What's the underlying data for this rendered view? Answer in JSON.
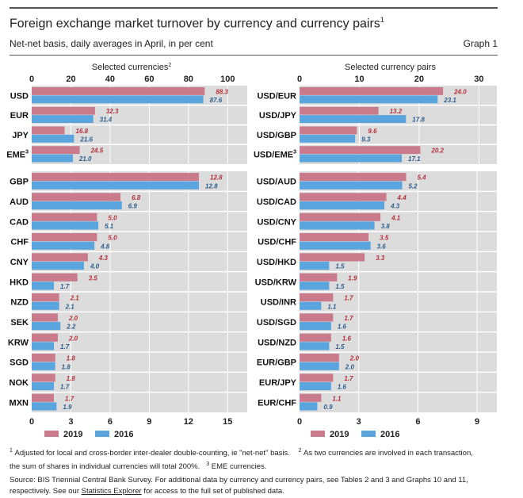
{
  "header": {
    "title": "Foreign exchange market turnover by currency and currency pairs",
    "title_sup": "1",
    "subtitle": "Net-net basis, daily averages in April, in per cent",
    "graph_number": "Graph 1"
  },
  "colors": {
    "y2019": "#c97b8c",
    "y2016": "#5aa5de",
    "label2019": "#b5303a",
    "label2016": "#2f5f8f",
    "plot_bg": "#dcdcdc"
  },
  "chart_data": [
    {
      "type": "bar",
      "orientation": "horizontal",
      "chart": "left",
      "title": "Selected currencies",
      "title_sup": "2",
      "axis": "top",
      "ticks": [
        0,
        20,
        40,
        60,
        80,
        100
      ],
      "xlim": [
        0,
        110
      ],
      "categories": [
        "USD",
        "EUR",
        "JPY",
        "EME"
      ],
      "category_sups": {
        "EME": "3"
      },
      "series": [
        {
          "name": "2019",
          "values": [
            88.3,
            32.3,
            16.8,
            24.5
          ]
        },
        {
          "name": "2016",
          "values": [
            87.6,
            31.4,
            21.6,
            21.0
          ]
        }
      ]
    },
    {
      "type": "bar",
      "orientation": "horizontal",
      "chart": "left",
      "axis": "bottom",
      "ticks": [
        0,
        3,
        6,
        9,
        12,
        15
      ],
      "xlim": [
        0,
        16.5
      ],
      "categories": [
        "GBP",
        "AUD",
        "CAD",
        "CHF",
        "CNY",
        "HKD",
        "NZD",
        "SEK",
        "KRW",
        "SGD",
        "NOK",
        "MXN"
      ],
      "series": [
        {
          "name": "2019",
          "values": [
            12.8,
            6.8,
            5.0,
            5.0,
            4.3,
            3.5,
            2.1,
            2.0,
            2.0,
            1.8,
            1.8,
            1.7
          ]
        },
        {
          "name": "2016",
          "values": [
            12.8,
            6.9,
            5.1,
            4.8,
            4.0,
            1.7,
            2.1,
            2.2,
            1.7,
            1.8,
            1.7,
            1.9
          ]
        }
      ]
    },
    {
      "type": "bar",
      "orientation": "horizontal",
      "chart": "right",
      "title": "Selected currency pairs",
      "axis": "top",
      "ticks": [
        0,
        10,
        20,
        30
      ],
      "xlim": [
        0,
        33
      ],
      "categories": [
        "USD/EUR",
        "USD/JPY",
        "USD/GBP",
        "USD/EME"
      ],
      "category_sups": {
        "USD/EME": "3"
      },
      "series": [
        {
          "name": "2019",
          "values": [
            24.0,
            13.2,
            9.6,
            20.2
          ]
        },
        {
          "name": "2016",
          "values": [
            23.1,
            17.8,
            9.3,
            17.1
          ]
        }
      ]
    },
    {
      "type": "bar",
      "orientation": "horizontal",
      "chart": "right",
      "axis": "bottom",
      "ticks": [
        0,
        3,
        6,
        9
      ],
      "xlim": [
        0,
        10
      ],
      "categories": [
        "USD/AUD",
        "USD/CAD",
        "USD/CNY",
        "USD/CHF",
        "USD/HKD",
        "USD/KRW",
        "USD/INR",
        "USD/SGD",
        "USD/NZD",
        "EUR/GBP",
        "EUR/JPY",
        "EUR/CHF"
      ],
      "series": [
        {
          "name": "2019",
          "values": [
            5.4,
            4.4,
            4.1,
            3.5,
            3.3,
            1.9,
            1.7,
            1.7,
            1.6,
            2.0,
            1.7,
            1.1
          ]
        },
        {
          "name": "2016",
          "values": [
            5.2,
            4.3,
            3.8,
            3.6,
            1.5,
            1.5,
            1.1,
            1.6,
            1.5,
            2.0,
            1.6,
            0.9
          ]
        }
      ]
    }
  ],
  "legend": [
    "2019",
    "2016"
  ],
  "footnotes": {
    "n1_sup": "1",
    "n1": "Adjusted for local and cross-border inter-dealer double-counting, ie \"net-net\" basis.",
    "n2_sup": "2",
    "n2a": "As two currencies are involved in each transaction,",
    "n2b": "the sum of shares in individual currencies will total 200%.",
    "n3_sup": "3",
    "n3": "EME currencies."
  },
  "source": {
    "line1": "Source: BIS Triennial Central Bank Survey. For additional data by currency and currency pairs, see Tables 2 and 3 and Graphs 10 and 11,",
    "line2a": "respectively. See our ",
    "link": "Statistics Explorer",
    "line2b": " for access to the full set of published data."
  }
}
